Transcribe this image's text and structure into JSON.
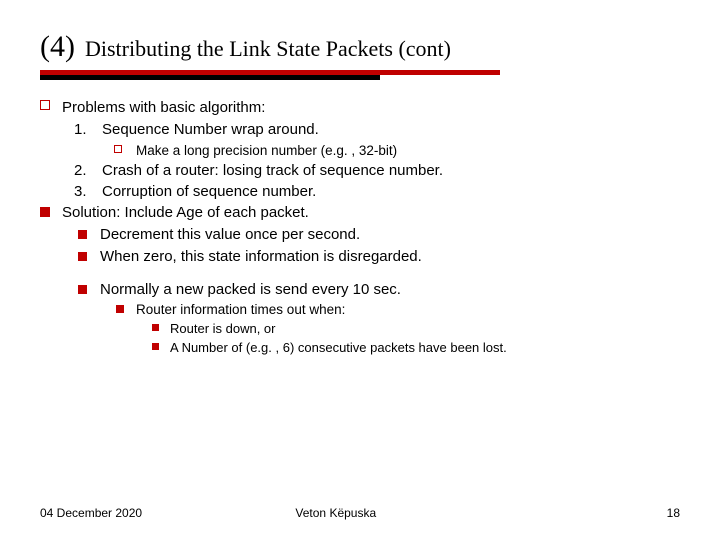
{
  "title": {
    "num": "(4)",
    "text": "Distributing the Link State Packets (cont)"
  },
  "colors": {
    "accent": "#c00000",
    "text": "#000000",
    "background": "#ffffff"
  },
  "problems": {
    "heading": "Problems with basic algorithm:",
    "items": [
      {
        "num": "1.",
        "text": "Sequence Number wrap around.",
        "sub": [
          "Make a long precision number (e.g. , 32-bit)"
        ]
      },
      {
        "num": "2.",
        "text": "Crash of a router: losing track of sequence number."
      },
      {
        "num": "3.",
        "text": "Corruption of sequence number."
      }
    ]
  },
  "solution": {
    "heading": "Solution: Include Age of each packet.",
    "bullets": [
      "Decrement this value once per second.",
      "When zero, this state information is disregarded."
    ],
    "normally": "Normally a new packed is send every 10 sec.",
    "timeout": {
      "text": "Router information times out when:",
      "items": [
        "Router is down, or",
        "A Number of (e.g. , 6) consecutive packets have been lost."
      ]
    }
  },
  "footer": {
    "date": "04 December 2020",
    "author": "Veton Këpuska",
    "page": "18"
  }
}
